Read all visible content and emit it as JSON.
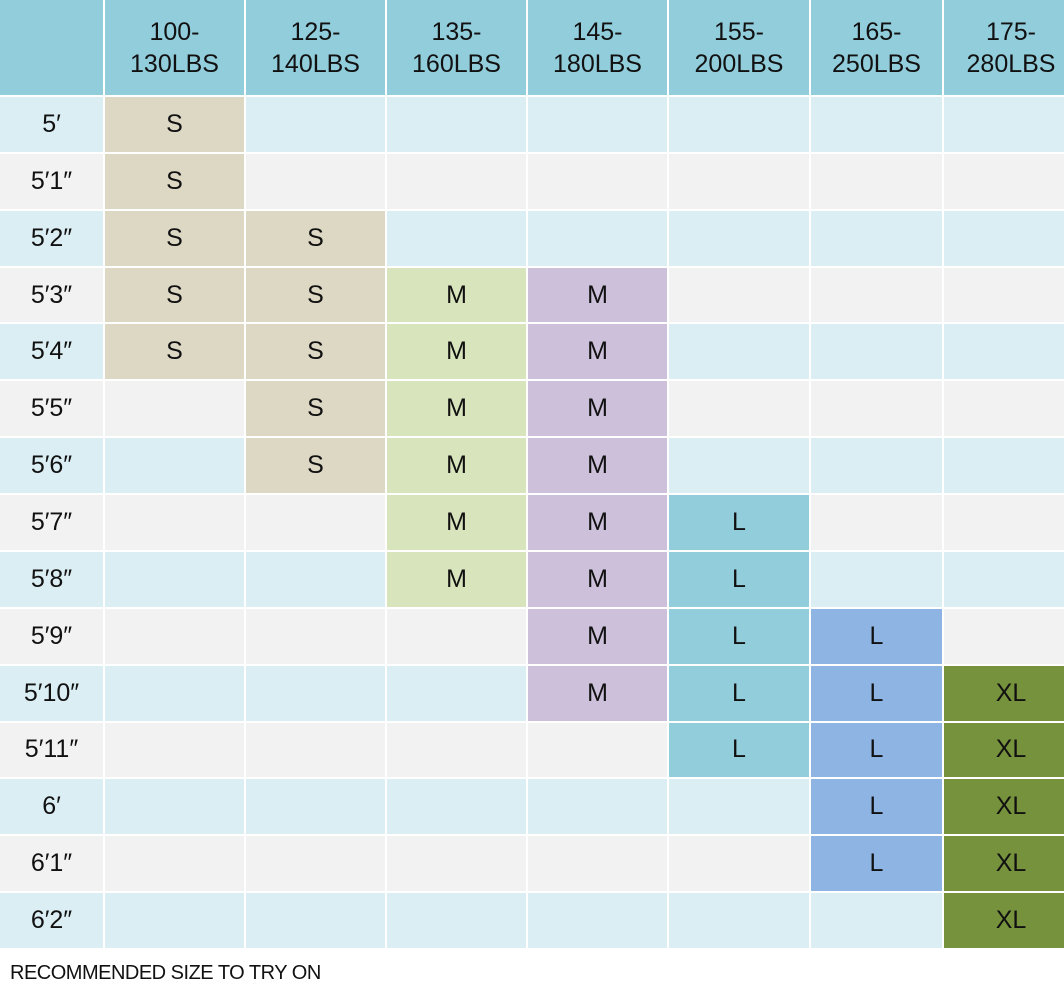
{
  "table": {
    "header": [
      "100-\n130LBS",
      "125-\n140LBS",
      "135-\n160LBS",
      "145-\n180LBS",
      "155-\n200LBS",
      "165-\n250LBS",
      "175-\n280LBS"
    ],
    "column_colors": [
      "#ddd8c4",
      "#ddd8c4",
      "#d8e4bc",
      "#ccc0da",
      "#92cddc",
      "#8db4e2",
      "#76923c"
    ],
    "rows": [
      {
        "height": "5′",
        "sizes": [
          "S",
          null,
          null,
          null,
          null,
          null,
          null
        ]
      },
      {
        "height": "5′1″",
        "sizes": [
          "S",
          null,
          null,
          null,
          null,
          null,
          null
        ]
      },
      {
        "height": "5′2″",
        "sizes": [
          "S",
          "S",
          null,
          null,
          null,
          null,
          null
        ]
      },
      {
        "height": "5′3″",
        "sizes": [
          "S",
          "S",
          "M",
          "M",
          null,
          null,
          null
        ]
      },
      {
        "height": "5′4″",
        "sizes": [
          "S",
          "S",
          "M",
          "M",
          null,
          null,
          null
        ]
      },
      {
        "height": "5′5″",
        "sizes": [
          null,
          "S",
          "M",
          "M",
          null,
          null,
          null
        ]
      },
      {
        "height": "5′6″",
        "sizes": [
          null,
          "S",
          "M",
          "M",
          null,
          null,
          null
        ]
      },
      {
        "height": "5′7″",
        "sizes": [
          null,
          null,
          "M",
          "M",
          "L",
          null,
          null
        ]
      },
      {
        "height": "5′8″",
        "sizes": [
          null,
          null,
          "M",
          "M",
          "L",
          null,
          null
        ]
      },
      {
        "height": "5′9″",
        "sizes": [
          null,
          null,
          null,
          "M",
          "L",
          "L",
          null
        ]
      },
      {
        "height": "5′10″",
        "sizes": [
          null,
          null,
          null,
          "M",
          "L",
          "L",
          "XL"
        ]
      },
      {
        "height": "5′11″",
        "sizes": [
          null,
          null,
          null,
          null,
          "L",
          "L",
          "XL"
        ]
      },
      {
        "height": "6′",
        "sizes": [
          null,
          null,
          null,
          null,
          null,
          "L",
          "XL"
        ]
      },
      {
        "height": "6′1″",
        "sizes": [
          null,
          null,
          null,
          null,
          null,
          "L",
          "XL"
        ]
      },
      {
        "height": "6′2″",
        "sizes": [
          null,
          null,
          null,
          null,
          null,
          null,
          "XL"
        ]
      }
    ],
    "footnote": "RECOMMENDED SIZE TO TRY ON"
  }
}
